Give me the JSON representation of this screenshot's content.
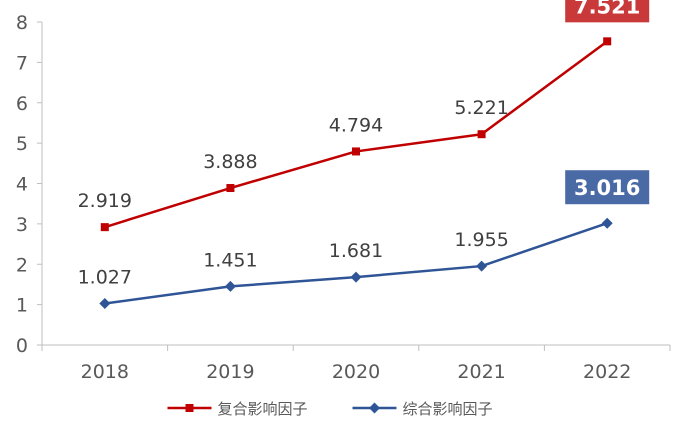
{
  "chart_data": {
    "type": "line",
    "title": "",
    "xlabel": "",
    "ylabel": "",
    "categories": [
      "2018",
      "2019",
      "2020",
      "2021",
      "2022"
    ],
    "ylim": [
      0,
      8
    ],
    "yticks": [
      "0",
      "1",
      "2",
      "3",
      "4",
      "5",
      "6",
      "7",
      "8"
    ],
    "grid": false,
    "legend_position": "bottom",
    "series": [
      {
        "name": "复合影响因子",
        "values": [
          2.919,
          3.888,
          4.794,
          5.221,
          7.521
        ],
        "labels": [
          "2.919",
          "3.888",
          "4.794",
          "5.221",
          "7.521"
        ],
        "color": "#c00000",
        "marker": "square",
        "highlight_last": true,
        "highlight_color": "#c9393a"
      },
      {
        "name": "综合影响因子",
        "values": [
          1.027,
          1.451,
          1.681,
          1.955,
          3.016
        ],
        "labels": [
          "1.027",
          "1.451",
          "1.681",
          "1.955",
          "3.016"
        ],
        "color": "#2f5597",
        "marker": "diamond",
        "highlight_last": true,
        "highlight_color": "#4a6aa5"
      }
    ]
  }
}
